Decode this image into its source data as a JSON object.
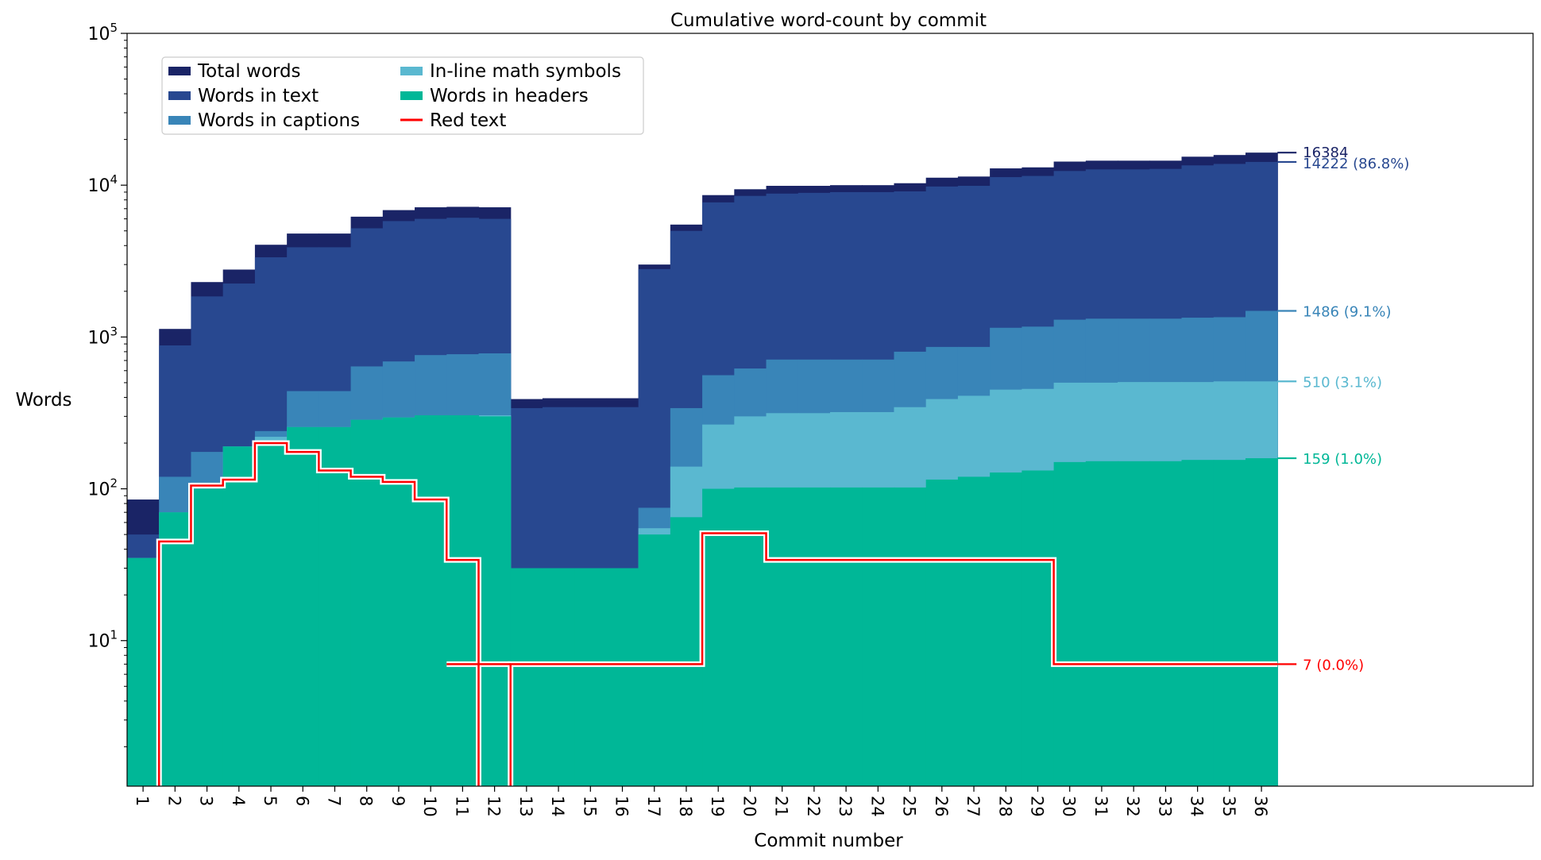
{
  "chart_data": {
    "type": "area",
    "title": "Cumulative word-count by commit",
    "xlabel": "Commit number",
    "ylabel": "Words",
    "yscale": "log",
    "ylim": [
      1.1,
      100000
    ],
    "xlim": [
      0.5,
      44.5
    ],
    "y_ticks": [
      {
        "value": 10,
        "base": "10",
        "exp": "1"
      },
      {
        "value": 100,
        "base": "10",
        "exp": "2"
      },
      {
        "value": 1000,
        "base": "10",
        "exp": "3"
      },
      {
        "value": 10000,
        "base": "10",
        "exp": "4"
      },
      {
        "value": 100000,
        "base": "10",
        "exp": "5"
      }
    ],
    "categories": [
      "1",
      "2",
      "3",
      "4",
      "5",
      "6",
      "7",
      "8",
      "9",
      "10",
      "11",
      "12",
      "13",
      "14",
      "15",
      "16",
      "17",
      "18",
      "19",
      "20",
      "21",
      "22",
      "23",
      "24",
      "25",
      "26",
      "27",
      "28",
      "29",
      "30",
      "31",
      "32",
      "33",
      "34",
      "35",
      "36"
    ],
    "legend_position": "upper-left",
    "legend": [
      {
        "label": "Total words",
        "color": "#1a2466",
        "kind": "patch"
      },
      {
        "label": "Words in text",
        "color": "#284890",
        "kind": "patch"
      },
      {
        "label": "Words in captions",
        "color": "#3985b8",
        "kind": "patch"
      },
      {
        "label": "In-line math symbols",
        "color": "#5ab8d0",
        "kind": "patch"
      },
      {
        "label": "Words in headers",
        "color": "#00b797",
        "kind": "patch"
      },
      {
        "label": "Red text",
        "color": "#ff0000",
        "kind": "line"
      }
    ],
    "series": [
      {
        "name": "Total words",
        "color": "#1a2466",
        "values": [
          85,
          1130,
          2300,
          2780,
          4050,
          4800,
          4800,
          6200,
          6850,
          7150,
          7200,
          7150,
          390,
          395,
          395,
          395,
          3000,
          5500,
          8600,
          9400,
          9900,
          9900,
          10000,
          10000,
          10300,
          11200,
          11400,
          12900,
          13100,
          14300,
          14500,
          14500,
          14500,
          15400,
          15800,
          16384
        ]
      },
      {
        "name": "Words in text",
        "color": "#284890",
        "values": [
          50,
          880,
          1850,
          2250,
          3350,
          3900,
          3900,
          5200,
          5800,
          6000,
          6100,
          6000,
          340,
          345,
          345,
          345,
          2800,
          5000,
          7700,
          8500,
          8800,
          8900,
          9000,
          9000,
          9100,
          9800,
          9900,
          11300,
          11500,
          12400,
          12700,
          12700,
          12800,
          13500,
          13800,
          14222
        ]
      },
      {
        "name": "Words in captions",
        "color": "#3985b8",
        "values": [
          35,
          120,
          175,
          190,
          240,
          440,
          440,
          640,
          690,
          760,
          770,
          780,
          30,
          30,
          30,
          30,
          75,
          340,
          560,
          620,
          710,
          710,
          710,
          710,
          800,
          860,
          860,
          1150,
          1170,
          1300,
          1320,
          1320,
          1320,
          1340,
          1350,
          1486
        ]
      },
      {
        "name": "In-line math symbols",
        "color": "#5ab8d0",
        "values": [
          35,
          70,
          110,
          190,
          220,
          255,
          255,
          285,
          295,
          305,
          305,
          305,
          30,
          30,
          30,
          30,
          55,
          140,
          265,
          300,
          315,
          315,
          320,
          320,
          345,
          390,
          410,
          450,
          455,
          500,
          500,
          505,
          505,
          505,
          510,
          510
        ]
      },
      {
        "name": "Words in headers",
        "color": "#00b797",
        "values": [
          35,
          70,
          100,
          190,
          200,
          255,
          255,
          285,
          295,
          305,
          305,
          300,
          30,
          30,
          30,
          30,
          50,
          65,
          100,
          102,
          102,
          102,
          102,
          102,
          102,
          115,
          120,
          128,
          132,
          150,
          152,
          152,
          152,
          155,
          155,
          159
        ]
      },
      {
        "name": "Red text",
        "color": "#ff0000",
        "values": [
          0,
          45,
          105,
          115,
          200,
          175,
          132,
          120,
          111,
          85,
          34,
          0,
          7,
          7,
          7,
          7,
          7,
          7,
          51,
          51,
          34,
          34,
          34,
          34,
          34,
          34,
          34,
          34,
          34,
          7,
          7,
          7,
          7,
          7,
          7,
          7
        ],
        "extra_segment": {
          "from_x": 10.5,
          "to_x": 12.5,
          "value": 7
        }
      }
    ],
    "end_labels": [
      {
        "text": "16384",
        "value": 16384,
        "color": "#1a2466"
      },
      {
        "text": "14222 (86.8%)",
        "value": 14222,
        "color": "#284890"
      },
      {
        "text": "1486 (9.1%)",
        "value": 1486,
        "color": "#3985b8"
      },
      {
        "text": "510 (3.1%)",
        "value": 510,
        "color": "#5ab8d0"
      },
      {
        "text": "159 (1.0%)",
        "value": 159,
        "color": "#00b797"
      },
      {
        "text": "7 (0.0%)",
        "value": 7,
        "color": "#ff0000"
      }
    ]
  }
}
